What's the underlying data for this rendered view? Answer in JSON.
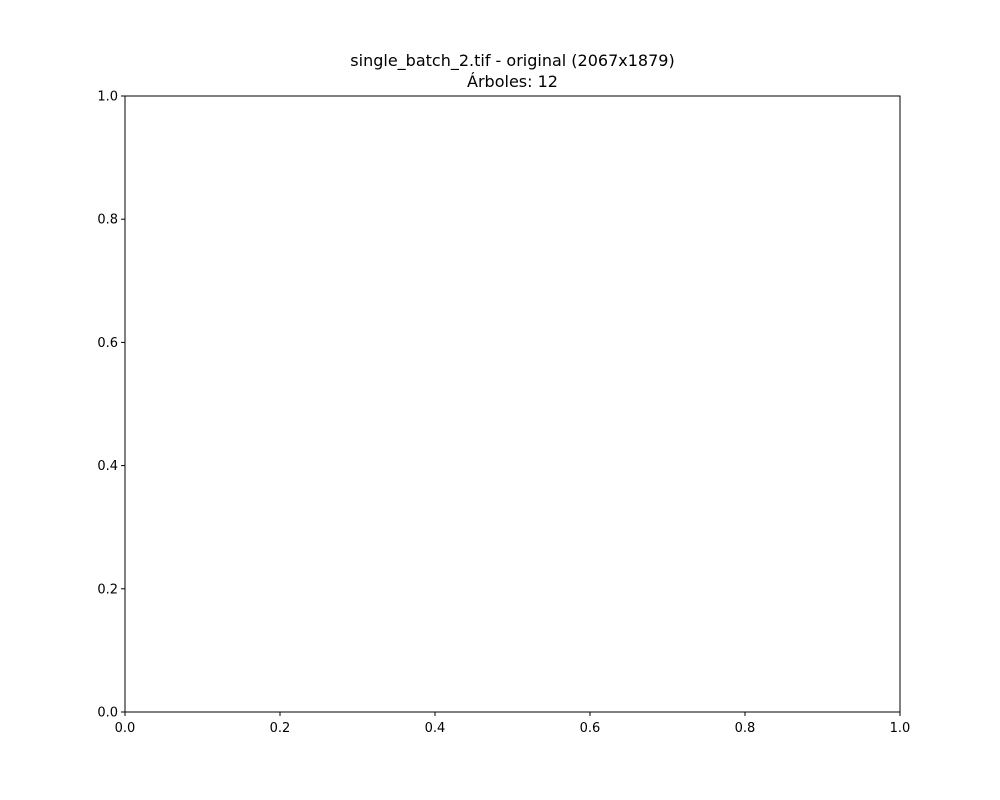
{
  "chart_data": {
    "type": "scatter",
    "title_lines": [
      "single_batch_2.tif - original (2067x1879)",
      "Árboles: 12"
    ],
    "xlabel": "",
    "ylabel": "",
    "xlim": [
      0.0,
      1.0
    ],
    "ylim": [
      0.0,
      1.0
    ],
    "x_ticks": [
      "0.0",
      "0.2",
      "0.4",
      "0.6",
      "0.8",
      "1.0"
    ],
    "y_ticks": [
      "0.0",
      "0.2",
      "0.4",
      "0.6",
      "0.8",
      "1.0"
    ],
    "grid": false,
    "series": []
  },
  "colors": {
    "axes": "#000000",
    "background": "#ffffff"
  }
}
